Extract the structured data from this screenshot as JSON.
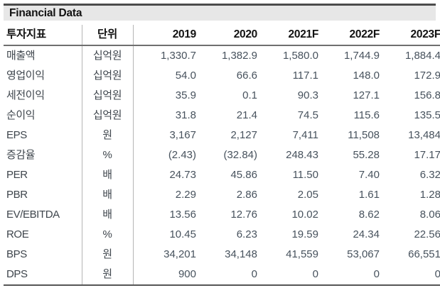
{
  "header": {
    "title": "Financial Data"
  },
  "chart_data": {
    "type": "table",
    "title": "Financial Data",
    "columns": [
      "투자지표",
      "단위",
      "2019",
      "2020",
      "2021F",
      "2022F",
      "2023F"
    ],
    "rows": [
      {
        "label": "매출액",
        "unit": "십억원",
        "values": [
          "1,330.7",
          "1,382.9",
          "1,580.0",
          "1,744.9",
          "1,884.4"
        ]
      },
      {
        "label": "영업이익",
        "unit": "십억원",
        "values": [
          "54.0",
          "66.6",
          "117.1",
          "148.0",
          "172.9"
        ]
      },
      {
        "label": "세전이익",
        "unit": "십억원",
        "values": [
          "35.9",
          "0.1",
          "90.3",
          "127.1",
          "156.8"
        ]
      },
      {
        "label": "순이익",
        "unit": "십억원",
        "values": [
          "31.8",
          "21.4",
          "74.5",
          "115.6",
          "135.5"
        ]
      },
      {
        "label": "EPS",
        "unit": "원",
        "values": [
          "3,167",
          "2,127",
          "7,411",
          "11,508",
          "13,484"
        ]
      },
      {
        "label": "증감율",
        "unit": "%",
        "values": [
          "(2.43)",
          "(32.84)",
          "248.43",
          "55.28",
          "17.17"
        ]
      },
      {
        "label": "PER",
        "unit": "배",
        "values": [
          "24.73",
          "45.86",
          "11.50",
          "7.40",
          "6.32"
        ]
      },
      {
        "label": "PBR",
        "unit": "배",
        "values": [
          "2.29",
          "2.86",
          "2.05",
          "1.61",
          "1.28"
        ]
      },
      {
        "label": "EV/EBITDA",
        "unit": "배",
        "values": [
          "13.56",
          "12.76",
          "10.02",
          "8.62",
          "8.06"
        ]
      },
      {
        "label": "ROE",
        "unit": "%",
        "values": [
          "10.45",
          "6.23",
          "19.59",
          "24.34",
          "22.56"
        ]
      },
      {
        "label": "BPS",
        "unit": "원",
        "values": [
          "34,201",
          "34,148",
          "41,559",
          "53,067",
          "66,551"
        ]
      },
      {
        "label": "DPS",
        "unit": "원",
        "values": [
          "900",
          "0",
          "0",
          "0",
          "0"
        ]
      }
    ]
  },
  "colors": {
    "title_bar_bg": "#e7e7e7",
    "top_border": "#4c4c4c",
    "header_rule": "#6f6f6f",
    "bottom_rule": "#565656",
    "divider": "#b5b5b5",
    "header_text": "#121212",
    "label_text": "#3e454c",
    "value_text": "#47525d"
  }
}
